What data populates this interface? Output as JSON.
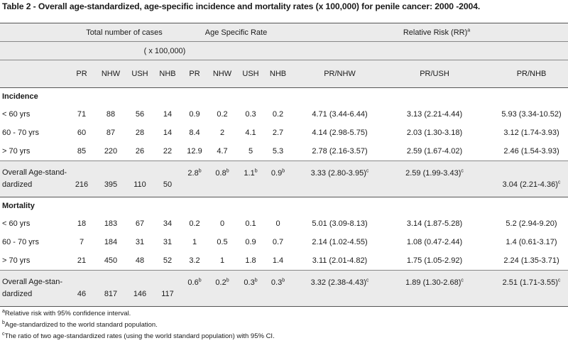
{
  "title": "Table 2 - Overall age-standardized, age-specific incidence and mortality rates (x 100,000) for penile cancer: 2000 -2004.",
  "header": {
    "group_total": "Total number of cases",
    "group_rate": "Age Specific Rate",
    "group_rr": "Relative Risk (RR)",
    "group_rr_sup": "a",
    "rate_unit": "( x 100,000)",
    "columns": [
      "PR",
      "NHW",
      "USH",
      "NHB",
      "PR",
      "NHW",
      "USH",
      "NHB",
      "PR/NHW",
      "PR/USH",
      "PR/NHB"
    ]
  },
  "incidence": {
    "label": "Incidence",
    "rows": [
      {
        "label": "< 60 yrs",
        "cells": [
          "71",
          "88",
          "56",
          "14",
          "0.9",
          "0.2",
          "0.3",
          "0.2",
          "4.71 (3.44-6.44)",
          "3.13 (2.21-4.44)",
          "5.93 (3.34-10.52)"
        ]
      },
      {
        "label": "60 - 70 yrs",
        "cells": [
          "60",
          "87",
          "28",
          "14",
          "8.4",
          "2",
          "4.1",
          "2.7",
          "4.14 (2.98-5.75)",
          "2.03 (1.30-3.18)",
          "3.12 (1.74-3.93)"
        ]
      },
      {
        "label": "> 70 yrs",
        "cells": [
          "85",
          "220",
          "26",
          "22",
          "12.9",
          "4.7",
          "5",
          "5.3",
          "2.78 (2.16-3.57)",
          "2.59 (1.67-4.02)",
          "2.46 (1.54-3.93)"
        ]
      }
    ],
    "overall": {
      "label_line1": "Overall Age-stand-",
      "label_line2": "dardized",
      "counts": [
        "216",
        "395",
        "110",
        "50"
      ],
      "rates": [
        "2.8",
        "0.8",
        "1.1",
        "0.9"
      ],
      "rate_sup": "b",
      "rr": [
        "3.33 (2.80-3.95)",
        "2.59 (1.99-3.43)",
        "3.04 (2.21-4.36)"
      ],
      "rr_sup": "c"
    }
  },
  "mortality": {
    "label": "Mortality",
    "rows": [
      {
        "label": "< 60 yrs",
        "cells": [
          "18",
          "183",
          "67",
          "34",
          "0.2",
          "0",
          "0.1",
          "0",
          "5.01 (3.09-8.13)",
          "3.14 (1.87-5.28)",
          "5.2 (2.94-9.20)"
        ]
      },
      {
        "label": "60 - 70 yrs",
        "cells": [
          "7",
          "184",
          "31",
          "31",
          "1",
          "0.5",
          "0.9",
          "0.7",
          "2.14 (1.02-4.55)",
          "1.08 (0.47-2.44)",
          "1.4 (0.61-3.17)"
        ]
      },
      {
        "label": "> 70 yrs",
        "cells": [
          "21",
          "450",
          "48",
          "52",
          "3.2",
          "1",
          "1.8",
          "1.4",
          "3.11 (2.01-4.82)",
          "1.75 (1.05-2.92)",
          "2.24 (1.35-3.71)"
        ]
      }
    ],
    "overall": {
      "label_line1": "Overall Age-stan-",
      "label_line2": "dardized",
      "counts": [
        "46",
        "817",
        "146",
        "117"
      ],
      "rates": [
        "0.6",
        "0.2",
        "0.3",
        "0.3"
      ],
      "rate_sup": "b",
      "rr": [
        "3.32 (2.38-4.43)",
        "1.89 (1.30-2.68)",
        "2.51 (1.71-3.55)"
      ],
      "rr_sup": "c"
    }
  },
  "footnotes": [
    {
      "mark": "a",
      "text": "Relative risk with 95% confidence interval."
    },
    {
      "mark": "b",
      "text": "Age-standardized to the world standard population."
    },
    {
      "mark": "c",
      "text": "The ratio of two age-standardized rates (using the world standard population) with 95% CI."
    }
  ]
}
